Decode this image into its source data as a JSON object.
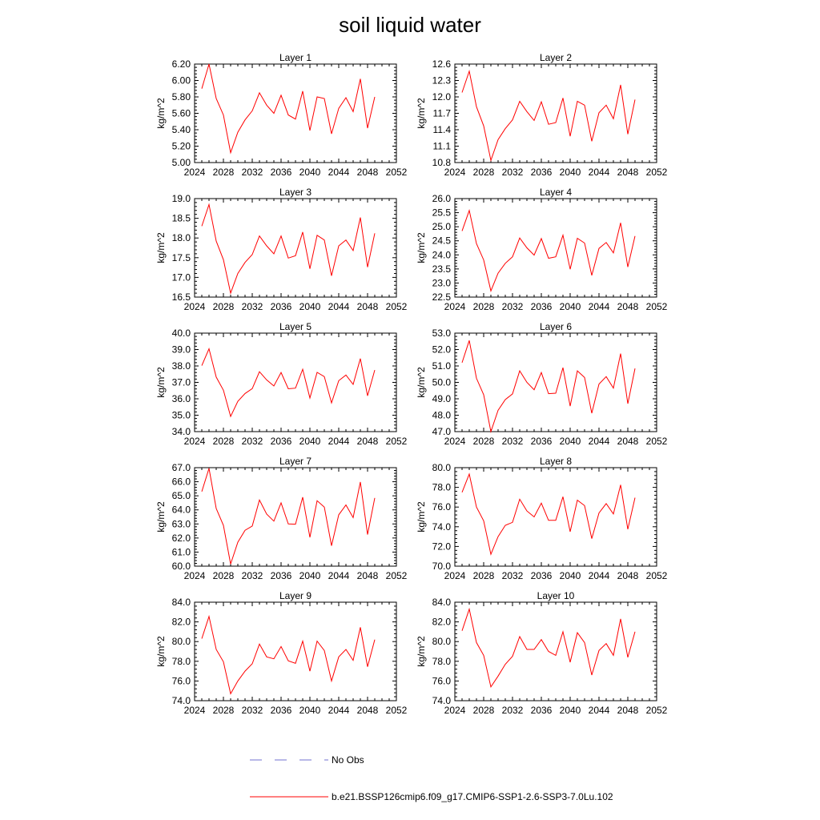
{
  "title": "soil liquid water",
  "series_color": "#ff0000",
  "obs_color": "#7070d0",
  "legend": {
    "obs_label": "No Obs",
    "model_label": "b.e21.BSSP126cmip6.f09_g17.CMIP6-SSP1-2.6-SSP3-7.0Lu.102"
  },
  "chart_data": [
    {
      "type": "line",
      "title": "Layer 1",
      "ylabel": "kg/m^2",
      "xlim": [
        2024,
        2052
      ],
      "xticks": [
        2024,
        2028,
        2032,
        2036,
        2040,
        2044,
        2048,
        2052
      ],
      "ylim": [
        5.0,
        6.2
      ],
      "yticks": [
        "5.00",
        "5.20",
        "5.40",
        "5.60",
        "5.80",
        "6.00",
        "6.20"
      ],
      "x": [
        2025,
        2026,
        2027,
        2028,
        2029,
        2030,
        2031,
        2032,
        2033,
        2034,
        2035,
        2036,
        2037,
        2038,
        2039,
        2040,
        2041,
        2042,
        2043,
        2044,
        2045,
        2046,
        2047,
        2048,
        2049
      ],
      "y": [
        5.9,
        6.2,
        5.78,
        5.58,
        5.12,
        5.37,
        5.52,
        5.63,
        5.85,
        5.7,
        5.6,
        5.82,
        5.58,
        5.53,
        5.87,
        5.39,
        5.8,
        5.78,
        5.35,
        5.66,
        5.79,
        5.62,
        6.02,
        5.42,
        5.8
      ]
    },
    {
      "type": "line",
      "title": "Layer 2",
      "ylabel": "kg/m^2",
      "xlim": [
        2024,
        2052
      ],
      "xticks": [
        2024,
        2028,
        2032,
        2036,
        2040,
        2044,
        2048,
        2052
      ],
      "ylim": [
        10.8,
        12.6
      ],
      "yticks": [
        "10.8",
        "11.1",
        "11.4",
        "11.7",
        "12.0",
        "12.3",
        "12.6"
      ],
      "x": [
        2025,
        2026,
        2027,
        2028,
        2029,
        2030,
        2031,
        2032,
        2033,
        2034,
        2035,
        2036,
        2037,
        2038,
        2039,
        2040,
        2041,
        2042,
        2043,
        2044,
        2045,
        2046,
        2047,
        2048,
        2049
      ],
      "y": [
        12.08,
        12.47,
        11.82,
        11.47,
        10.84,
        11.22,
        11.42,
        11.58,
        11.92,
        11.73,
        11.57,
        11.91,
        11.5,
        11.53,
        11.98,
        11.28,
        11.92,
        11.85,
        11.19,
        11.71,
        11.85,
        11.6,
        12.22,
        11.32,
        11.95
      ]
    },
    {
      "type": "line",
      "title": "Layer 3",
      "ylabel": "kg/m^2",
      "xlim": [
        2024,
        2052
      ],
      "xticks": [
        2024,
        2028,
        2032,
        2036,
        2040,
        2044,
        2048,
        2052
      ],
      "ylim": [
        16.5,
        19.0
      ],
      "yticks": [
        "16.5",
        "17.0",
        "17.5",
        "18.0",
        "18.5",
        "19.0"
      ],
      "x": [
        2025,
        2026,
        2027,
        2028,
        2029,
        2030,
        2031,
        2032,
        2033,
        2034,
        2035,
        2036,
        2037,
        2038,
        2039,
        2040,
        2041,
        2042,
        2043,
        2044,
        2045,
        2046,
        2047,
        2048,
        2049
      ],
      "y": [
        18.3,
        18.85,
        17.92,
        17.45,
        16.6,
        17.1,
        17.38,
        17.58,
        18.05,
        17.8,
        17.6,
        18.05,
        17.49,
        17.55,
        18.15,
        17.22,
        18.07,
        17.95,
        17.04,
        17.8,
        17.95,
        17.68,
        18.52,
        17.26,
        18.12
      ]
    },
    {
      "type": "line",
      "title": "Layer 4",
      "ylabel": "kg/m^2",
      "xlim": [
        2024,
        2052
      ],
      "xticks": [
        2024,
        2028,
        2032,
        2036,
        2040,
        2044,
        2048,
        2052
      ],
      "ylim": [
        22.5,
        26.0
      ],
      "yticks": [
        "22.5",
        "23.0",
        "23.5",
        "24.0",
        "24.5",
        "25.0",
        "25.5",
        "26.0"
      ],
      "x": [
        2025,
        2026,
        2027,
        2028,
        2029,
        2030,
        2031,
        2032,
        2033,
        2034,
        2035,
        2036,
        2037,
        2038,
        2039,
        2040,
        2041,
        2042,
        2043,
        2044,
        2045,
        2046,
        2047,
        2048,
        2049
      ],
      "y": [
        24.85,
        25.58,
        24.4,
        23.82,
        22.72,
        23.35,
        23.7,
        23.93,
        24.6,
        24.25,
        23.99,
        24.58,
        23.88,
        23.93,
        24.7,
        23.49,
        24.59,
        24.42,
        23.27,
        24.23,
        24.44,
        24.07,
        25.14,
        23.57,
        24.67
      ]
    },
    {
      "type": "line",
      "title": "Layer 5",
      "ylabel": "kg/m^2",
      "xlim": [
        2024,
        2052
      ],
      "xticks": [
        2024,
        2028,
        2032,
        2036,
        2040,
        2044,
        2048,
        2052
      ],
      "ylim": [
        34.0,
        40.0
      ],
      "yticks": [
        "34.0",
        "35.0",
        "36.0",
        "37.0",
        "38.0",
        "39.0",
        "40.0"
      ],
      "x": [
        2025,
        2026,
        2027,
        2028,
        2029,
        2030,
        2031,
        2032,
        2033,
        2034,
        2035,
        2036,
        2037,
        2038,
        2039,
        2040,
        2041,
        2042,
        2043,
        2044,
        2045,
        2046,
        2047,
        2048,
        2049
      ],
      "y": [
        38.02,
        39.05,
        37.32,
        36.52,
        34.92,
        35.85,
        36.32,
        36.62,
        37.65,
        37.15,
        36.78,
        37.6,
        36.61,
        36.65,
        37.8,
        36.05,
        37.61,
        37.35,
        35.75,
        37.1,
        37.45,
        36.88,
        38.45,
        36.18,
        37.75
      ]
    },
    {
      "type": "line",
      "title": "Layer 6",
      "ylabel": "kg/m^2",
      "xlim": [
        2024,
        2052
      ],
      "xticks": [
        2024,
        2028,
        2032,
        2036,
        2040,
        2044,
        2048,
        2052
      ],
      "ylim": [
        47.0,
        53.0
      ],
      "yticks": [
        "47.0",
        "48.0",
        "49.0",
        "50.0",
        "51.0",
        "52.0",
        "53.0"
      ],
      "x": [
        2025,
        2026,
        2027,
        2028,
        2029,
        2030,
        2031,
        2032,
        2033,
        2034,
        2035,
        2036,
        2037,
        2038,
        2039,
        2040,
        2041,
        2042,
        2043,
        2044,
        2045,
        2046,
        2047,
        2048,
        2049
      ],
      "y": [
        51.2,
        52.55,
        50.25,
        49.25,
        47.0,
        48.3,
        48.95,
        49.3,
        50.7,
        50.0,
        49.55,
        50.6,
        49.31,
        49.34,
        50.9,
        48.55,
        50.7,
        50.3,
        48.12,
        49.9,
        50.35,
        49.65,
        51.75,
        48.7,
        50.85
      ]
    },
    {
      "type": "line",
      "title": "Layer 7",
      "ylabel": "kg/m^2",
      "xlim": [
        2024,
        2052
      ],
      "xticks": [
        2024,
        2028,
        2032,
        2036,
        2040,
        2044,
        2048,
        2052
      ],
      "ylim": [
        60.0,
        67.0
      ],
      "yticks": [
        "60.0",
        "61.0",
        "62.0",
        "63.0",
        "64.0",
        "65.0",
        "66.0",
        "67.0"
      ],
      "x": [
        2025,
        2026,
        2027,
        2028,
        2029,
        2030,
        2031,
        2032,
        2033,
        2034,
        2035,
        2036,
        2037,
        2038,
        2039,
        2040,
        2041,
        2042,
        2043,
        2044,
        2045,
        2046,
        2047,
        2048,
        2049
      ],
      "y": [
        65.3,
        66.95,
        64.1,
        62.9,
        60.15,
        61.7,
        62.55,
        62.85,
        64.7,
        63.7,
        63.2,
        64.5,
        63.0,
        62.98,
        64.9,
        62.05,
        64.65,
        64.2,
        61.45,
        63.65,
        64.35,
        63.45,
        65.98,
        62.25,
        64.85
      ]
    },
    {
      "type": "line",
      "title": "Layer 8",
      "ylabel": "kg/m^2",
      "xlim": [
        2024,
        2052
      ],
      "xticks": [
        2024,
        2028,
        2032,
        2036,
        2040,
        2044,
        2048,
        2052
      ],
      "ylim": [
        70.0,
        80.0
      ],
      "yticks": [
        "70.0",
        "72.0",
        "74.0",
        "76.0",
        "78.0",
        "80.0"
      ],
      "x": [
        2025,
        2026,
        2027,
        2028,
        2029,
        2030,
        2031,
        2032,
        2033,
        2034,
        2035,
        2036,
        2037,
        2038,
        2039,
        2040,
        2041,
        2042,
        2043,
        2044,
        2045,
        2046,
        2047,
        2048,
        2049
      ],
      "y": [
        77.5,
        79.35,
        76.0,
        74.6,
        71.2,
        73.0,
        74.15,
        74.45,
        76.8,
        75.6,
        75.0,
        76.4,
        74.65,
        74.65,
        77.05,
        73.5,
        76.7,
        76.15,
        72.8,
        75.4,
        76.35,
        75.3,
        78.25,
        73.75,
        76.95
      ]
    },
    {
      "type": "line",
      "title": "Layer 9",
      "ylabel": "kg/m^2",
      "xlim": [
        2024,
        2052
      ],
      "xticks": [
        2024,
        2028,
        2032,
        2036,
        2040,
        2044,
        2048,
        2052
      ],
      "ylim": [
        74.0,
        84.0
      ],
      "yticks": [
        "74.0",
        "76.0",
        "78.0",
        "80.0",
        "82.0",
        "84.0"
      ],
      "x": [
        2025,
        2026,
        2027,
        2028,
        2029,
        2030,
        2031,
        2032,
        2033,
        2034,
        2035,
        2036,
        2037,
        2038,
        2039,
        2040,
        2041,
        2042,
        2043,
        2044,
        2045,
        2046,
        2047,
        2048,
        2049
      ],
      "y": [
        80.3,
        82.55,
        79.2,
        77.95,
        74.7,
        76.0,
        77.0,
        77.75,
        79.75,
        78.45,
        78.25,
        79.5,
        78.05,
        77.8,
        80.05,
        77.0,
        80.05,
        79.1,
        76.0,
        78.45,
        79.2,
        78.1,
        81.45,
        77.45,
        80.2
      ]
    },
    {
      "type": "line",
      "title": "Layer 10",
      "ylabel": "kg/m^2",
      "xlim": [
        2024,
        2052
      ],
      "xticks": [
        2024,
        2028,
        2032,
        2036,
        2040,
        2044,
        2048,
        2052
      ],
      "ylim": [
        74.0,
        84.0
      ],
      "yticks": [
        "74.0",
        "76.0",
        "78.0",
        "80.0",
        "82.0",
        "84.0"
      ],
      "x": [
        2025,
        2026,
        2027,
        2028,
        2029,
        2030,
        2031,
        2032,
        2033,
        2034,
        2035,
        2036,
        2037,
        2038,
        2039,
        2040,
        2041,
        2042,
        2043,
        2044,
        2045,
        2046,
        2047,
        2048,
        2049
      ],
      "y": [
        81.1,
        83.3,
        79.9,
        78.6,
        75.4,
        76.5,
        77.7,
        78.5,
        80.5,
        79.2,
        79.2,
        80.2,
        79.0,
        78.6,
        81.0,
        77.9,
        80.9,
        79.9,
        76.6,
        79.1,
        79.8,
        78.6,
        82.3,
        78.4,
        81.0
      ]
    }
  ]
}
